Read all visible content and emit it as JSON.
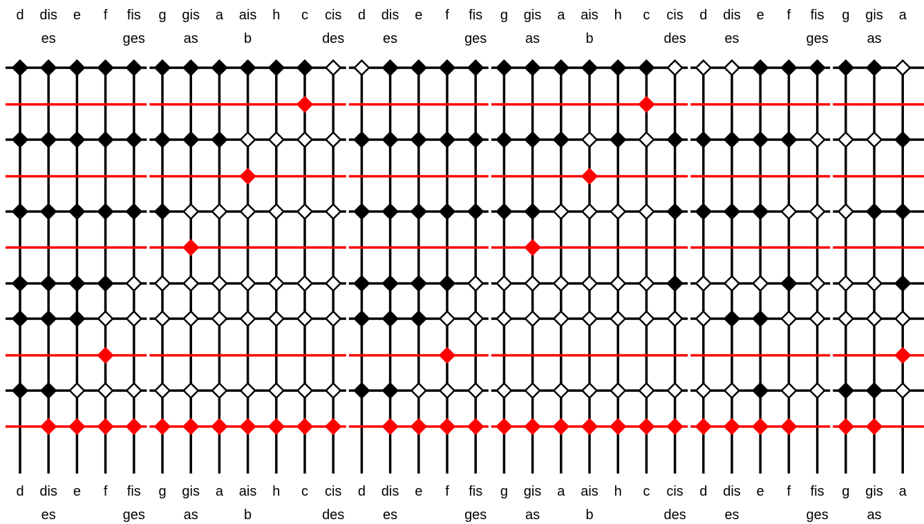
{
  "diagram": {
    "type": "note-layout-grid",
    "columns": [
      {
        "note": "d",
        "alt": ""
      },
      {
        "note": "dis",
        "alt": "es"
      },
      {
        "note": "e",
        "alt": ""
      },
      {
        "note": "f",
        "alt": ""
      },
      {
        "note": "fis",
        "alt": "ges"
      },
      {
        "note": "g",
        "alt": ""
      },
      {
        "note": "gis",
        "alt": "as"
      },
      {
        "note": "a",
        "alt": ""
      },
      {
        "note": "ais",
        "alt": "b"
      },
      {
        "note": "h",
        "alt": ""
      },
      {
        "note": "c",
        "alt": ""
      },
      {
        "note": "cis",
        "alt": "des"
      },
      {
        "note": "d",
        "alt": ""
      },
      {
        "note": "dis",
        "alt": "es"
      },
      {
        "note": "e",
        "alt": ""
      },
      {
        "note": "f",
        "alt": ""
      },
      {
        "note": "fis",
        "alt": "ges"
      },
      {
        "note": "g",
        "alt": ""
      },
      {
        "note": "gis",
        "alt": "as"
      },
      {
        "note": "a",
        "alt": ""
      },
      {
        "note": "ais",
        "alt": "b"
      },
      {
        "note": "h",
        "alt": ""
      },
      {
        "note": "c",
        "alt": ""
      },
      {
        "note": "cis",
        "alt": "des"
      },
      {
        "note": "d",
        "alt": ""
      },
      {
        "note": "dis",
        "alt": "es"
      },
      {
        "note": "e",
        "alt": ""
      },
      {
        "note": "f",
        "alt": ""
      },
      {
        "note": "fis",
        "alt": "ges"
      },
      {
        "note": "g",
        "alt": ""
      },
      {
        "note": "gis",
        "alt": "as"
      },
      {
        "note": "a",
        "alt": ""
      }
    ],
    "rows": [
      {
        "kind": "black",
        "nodes": "BBBBBBBBBBBWWBBBBBBBBBBWWWBBBBBW"
      },
      {
        "kind": "red",
        "marks": [
          10,
          22
        ]
      },
      {
        "kind": "black",
        "nodes": "BBBBBBBBWWWWBBBBBBBBWBWBBBBBWWWB"
      },
      {
        "kind": "red",
        "marks": [
          8,
          20
        ]
      },
      {
        "kind": "black",
        "nodes": "BBBBBBWWWWWWBBBBBBBWWWWBBBBWWWBB"
      },
      {
        "kind": "red",
        "marks": [
          6,
          18
        ]
      },
      {
        "kind": "black",
        "nodes": "BBBBWWWWWWWWBBBBWWWWWWWBWWWBWWWB"
      },
      {
        "kind": "black",
        "nodes": "BBBWWWWWWWWWBBBWWWWWWWWWWBBWWWWW"
      },
      {
        "kind": "red",
        "marks": [
          3,
          15,
          31
        ]
      },
      {
        "kind": "black",
        "nodes": "BBWWWWWWWWWWBBWWWWWWWWWWWWBWWBBW"
      },
      {
        "kind": "red",
        "marks": [
          1,
          2,
          3,
          4,
          5,
          6,
          7,
          8,
          9,
          10,
          11,
          13,
          14,
          15,
          16,
          17,
          18,
          19,
          20,
          21,
          22,
          23,
          24,
          25,
          26,
          27,
          29,
          30
        ]
      }
    ],
    "colors": {
      "grid": "#000000",
      "highlight": "#ff0000",
      "filled_node": "#000000",
      "empty_node": "#ffffff",
      "background": "#ffffff"
    }
  }
}
